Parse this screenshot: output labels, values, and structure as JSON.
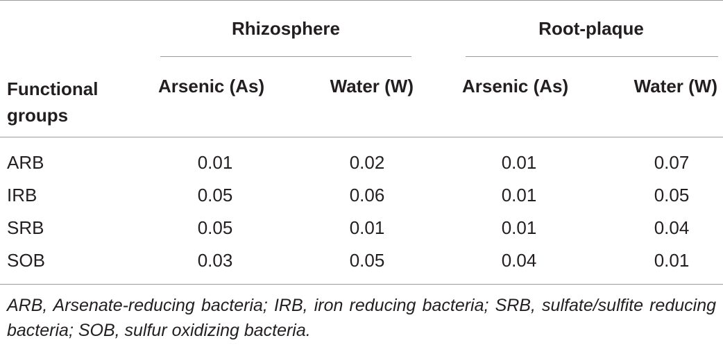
{
  "table": {
    "groups": [
      "Rhizosphere",
      "Root-plaque"
    ],
    "first_column_header": "Functional groups",
    "columns": [
      "Arsenic (As)",
      "Water (W)",
      "Arsenic (As)",
      "Water (W)"
    ],
    "rows": [
      {
        "label": "ARB",
        "values": [
          "0.01",
          "0.02",
          "0.01",
          "0.07"
        ]
      },
      {
        "label": "IRB",
        "values": [
          "0.05",
          "0.06",
          "0.01",
          "0.05"
        ]
      },
      {
        "label": "SRB",
        "values": [
          "0.05",
          "0.01",
          "0.01",
          "0.04"
        ]
      },
      {
        "label": "SOB",
        "values": [
          "0.03",
          "0.05",
          "0.04",
          "0.01"
        ]
      }
    ]
  },
  "footnote": "ARB, Arsenate-reducing bacteria; IRB, iron reducing bacteria; SRB, sulfate/sulfite reducing bacteria; SOB, sulfur oxidizing bacteria."
}
